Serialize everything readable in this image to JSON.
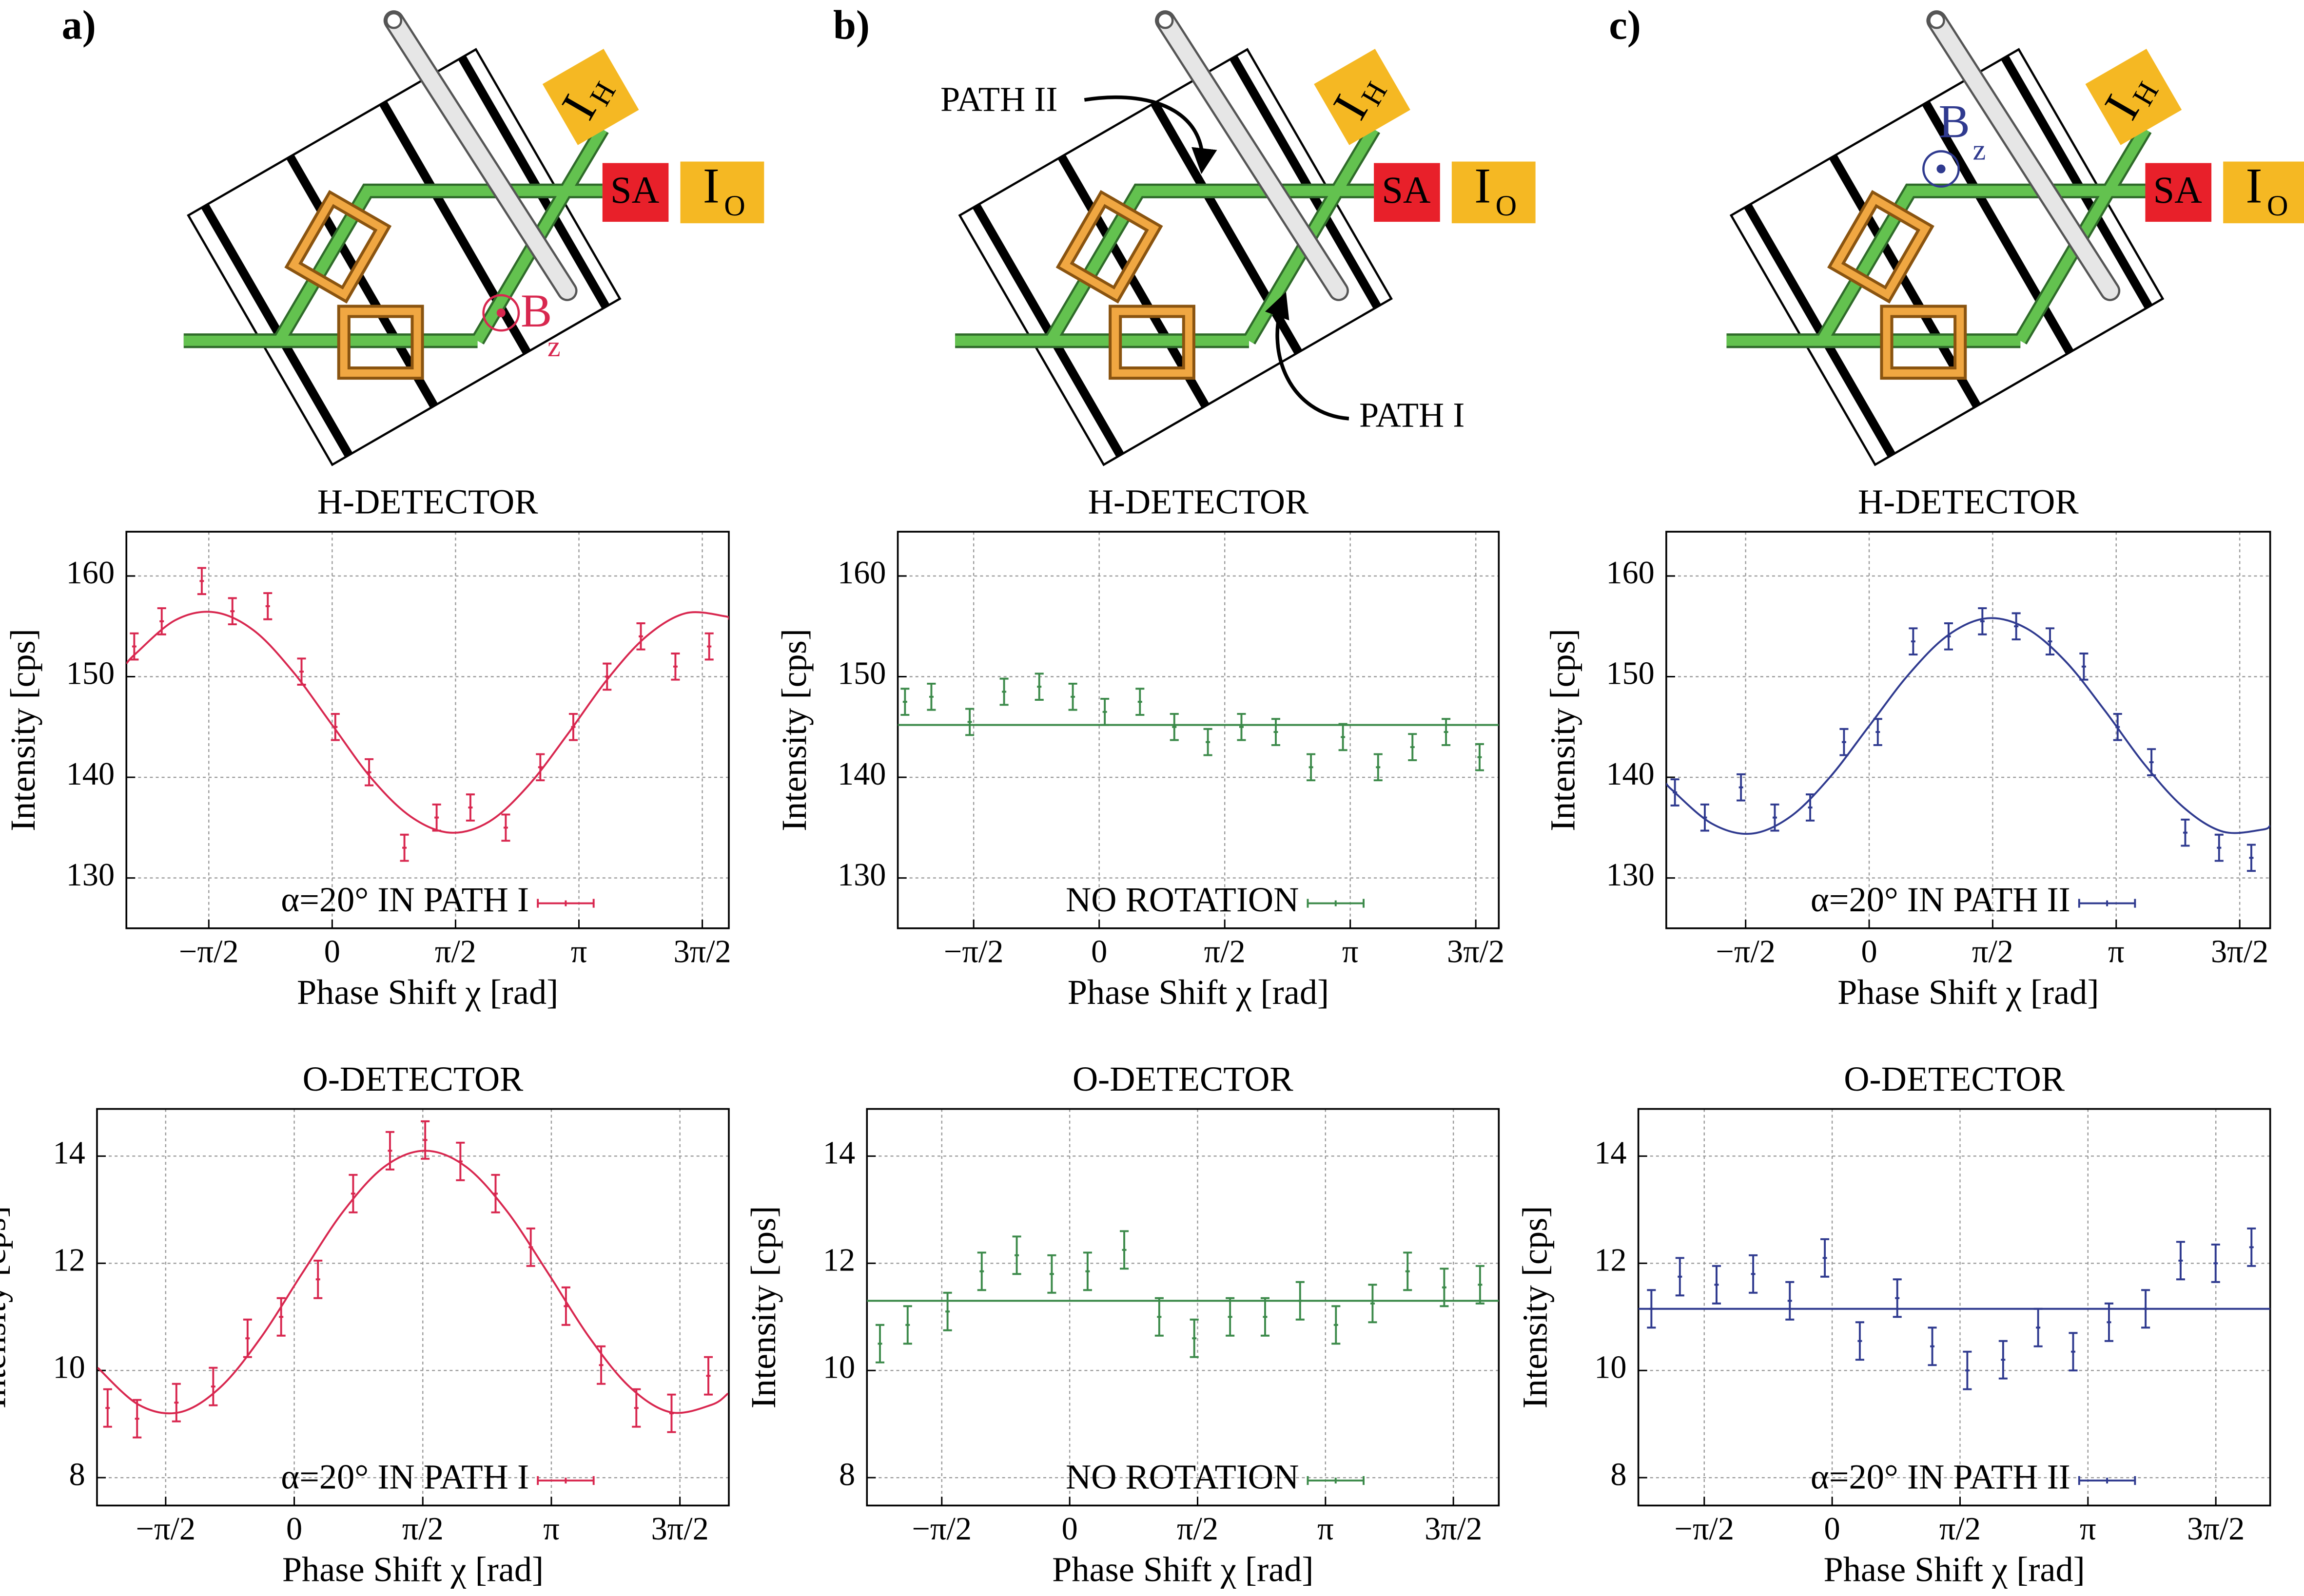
{
  "diagrams": [
    {
      "panel": "a)",
      "ih": "I",
      "ih_sub": "H",
      "sa": "SA",
      "io": "I",
      "io_sub": "O",
      "field": "B",
      "field_sub": "z"
    },
    {
      "panel": "b)",
      "ih": "I",
      "ih_sub": "H",
      "sa": "SA",
      "io": "I",
      "io_sub": "O",
      "path_ii": "PATH II",
      "path_i": "PATH I"
    },
    {
      "panel": "c)",
      "ih": "I",
      "ih_sub": "H",
      "sa": "SA",
      "io": "I",
      "io_sub": "O",
      "field": "B",
      "field_sub": "z"
    }
  ],
  "chart_data": [
    {
      "type": "scatter",
      "title": "H-DETECTOR",
      "xlabel": "Phase Shift χ [rad]",
      "ylabel": "Intensity [cps]",
      "xlim": [
        -2.62,
        5.05
      ],
      "ylim": [
        125,
        164.4
      ],
      "xticks": [
        {
          "value": -1.5708,
          "label": "−π/2"
        },
        0,
        {
          "value": 1.5708,
          "label": "π/2"
        },
        {
          "value": 3.1416,
          "label": "π"
        },
        {
          "value": 4.7124,
          "label": "3π/2"
        }
      ],
      "yticks": [
        130,
        140,
        150,
        160
      ],
      "grid": true,
      "legend_loc": "lower center",
      "series": [
        {
          "name": "α=20° IN PATH I",
          "color": "#d8274f",
          "x": [
            -2.52,
            -2.17,
            -1.66,
            -1.27,
            -0.82,
            -0.39,
            0.04,
            0.47,
            0.92,
            1.33,
            1.76,
            2.21,
            2.65,
            3.07,
            3.5,
            3.93,
            4.37,
            4.8
          ],
          "values": [
            153,
            155.5,
            159.5,
            156.5,
            157,
            150.5,
            145,
            140.5,
            133,
            136,
            137,
            135,
            141,
            145,
            150,
            154,
            151,
            153
          ],
          "errors": [
            1.3,
            1.3,
            1.3,
            1.3,
            1.3,
            1.3,
            1.3,
            1.3,
            1.3,
            1.3,
            1.3,
            1.3,
            1.3,
            1.3,
            1.3,
            1.3,
            1.3,
            1.3
          ]
        }
      ],
      "fit": {
        "x": [
          -2.62,
          -2.5,
          -2,
          -1.5,
          -1,
          -0.5,
          0,
          0.5,
          1,
          1.5,
          2,
          2.5,
          3,
          3.5,
          4,
          4.5,
          5,
          5.05
        ],
        "values": [
          151.3,
          152.3,
          155.6,
          156.4,
          154.6,
          150.5,
          145.2,
          139.9,
          136.1,
          134.5,
          135.6,
          139.2,
          144.3,
          149.7,
          154.0,
          156.3,
          156.0,
          155.7
        ]
      }
    },
    {
      "type": "scatter",
      "title": "H-DETECTOR",
      "xlabel": "Phase Shift χ [rad]",
      "ylabel": "Intensity [cps]",
      "xlim": [
        -2.52,
        5.0
      ],
      "ylim": [
        125,
        164.4
      ],
      "xticks": [
        {
          "value": -1.5708,
          "label": "−π/2"
        },
        0,
        {
          "value": 1.5708,
          "label": "π/2"
        },
        {
          "value": 3.1416,
          "label": "π"
        },
        {
          "value": 4.7124,
          "label": "3π/2"
        }
      ],
      "yticks": [
        130,
        140,
        150,
        160
      ],
      "grid": true,
      "legend_loc": "lower center",
      "series": [
        {
          "name": "NO ROTATION",
          "color": "#3c8a4a",
          "x": [
            -2.43,
            -2.1,
            -1.62,
            -1.19,
            -0.75,
            -0.33,
            0.07,
            0.51,
            0.94,
            1.36,
            1.78,
            2.21,
            2.65,
            3.05,
            3.49,
            3.92,
            4.34,
            4.76
          ],
          "values": [
            147.5,
            148,
            145.5,
            148.5,
            149,
            148,
            146.5,
            147.5,
            145,
            143.5,
            145,
            144.5,
            141,
            144,
            141,
            143,
            144.5,
            142
          ],
          "errors": [
            1.3,
            1.3,
            1.3,
            1.3,
            1.3,
            1.3,
            1.3,
            1.3,
            1.3,
            1.3,
            1.3,
            1.3,
            1.3,
            1.3,
            1.3,
            1.3,
            1.3,
            1.3
          ]
        }
      ],
      "fit": {
        "x": [
          -2.52,
          5.0
        ],
        "values": [
          145.2,
          145.2
        ]
      }
    },
    {
      "type": "scatter",
      "title": "H-DETECTOR",
      "xlabel": "Phase Shift χ [rad]",
      "ylabel": "Intensity [cps]",
      "xlim": [
        -2.58,
        5.1
      ],
      "ylim": [
        125,
        164.4
      ],
      "xticks": [
        {
          "value": -1.5708,
          "label": "−π/2"
        },
        0,
        {
          "value": 1.5708,
          "label": "π/2"
        },
        {
          "value": 3.1416,
          "label": "π"
        },
        {
          "value": 4.7124,
          "label": "3π/2"
        }
      ],
      "yticks": [
        130,
        140,
        150,
        160
      ],
      "grid": true,
      "legend_loc": "lower center",
      "series": [
        {
          "name": "α=20° IN PATH II",
          "color": "#2f3a8f",
          "x": [
            -2.47,
            -2.09,
            -1.63,
            -1.2,
            -0.75,
            -0.32,
            0.11,
            0.56,
            1.01,
            1.44,
            1.87,
            2.3,
            2.73,
            3.16,
            3.59,
            4.02,
            4.45,
            4.86
          ],
          "values": [
            138.5,
            136,
            139,
            136,
            137,
            143.5,
            144.5,
            153.5,
            154,
            155.5,
            155,
            153.5,
            151,
            145,
            141.5,
            134.5,
            133,
            132
          ],
          "errors": [
            1.3,
            1.3,
            1.3,
            1.3,
            1.3,
            1.3,
            1.3,
            1.3,
            1.3,
            1.3,
            1.3,
            1.3,
            1.3,
            1.3,
            1.3,
            1.3,
            1.3,
            1.3
          ]
        }
      ],
      "fit": {
        "x": [
          -2.58,
          -2.5,
          -2,
          -1.5,
          -1,
          -0.5,
          0,
          0.5,
          1,
          1.5,
          2,
          2.5,
          3,
          3.5,
          4,
          4.5,
          5,
          5.1
        ],
        "values": [
          139.4,
          138.7,
          135.4,
          134.4,
          136.1,
          140.0,
          145.1,
          150.2,
          154.1,
          155.8,
          154.8,
          151.5,
          146.6,
          141.3,
          137.0,
          134.6,
          134.8,
          135.2
        ]
      }
    },
    {
      "type": "scatter",
      "title": "O-DETECTOR",
      "xlabel": "Phase Shift χ [rad]",
      "ylabel": "Intensity [cps]",
      "xlim": [
        -2.41,
        5.31
      ],
      "ylim": [
        7.48,
        14.88
      ],
      "xticks": [
        {
          "value": -1.5708,
          "label": "−π/2"
        },
        0,
        {
          "value": 1.5708,
          "label": "π/2"
        },
        {
          "value": 3.1416,
          "label": "π"
        },
        {
          "value": 4.7124,
          "label": "3π/2"
        }
      ],
      "yticks": [
        8,
        10,
        12,
        14
      ],
      "grid": true,
      "legend_loc": "lower center",
      "series": [
        {
          "name": "α=20° IN PATH I",
          "color": "#d8274f",
          "x": [
            -2.28,
            -1.92,
            -1.44,
            -0.99,
            -0.57,
            -0.16,
            0.29,
            0.72,
            1.17,
            1.6,
            2.03,
            2.46,
            2.89,
            3.32,
            3.75,
            4.18,
            4.61,
            5.06
          ],
          "values": [
            9.3,
            9.1,
            9.4,
            9.7,
            10.6,
            11.0,
            11.7,
            13.3,
            14.1,
            14.3,
            13.9,
            13.3,
            12.3,
            11.2,
            10.1,
            9.3,
            9.2,
            9.9
          ],
          "errors": [
            0.35,
            0.35,
            0.35,
            0.35,
            0.35,
            0.35,
            0.35,
            0.35,
            0.35,
            0.35,
            0.35,
            0.35,
            0.35,
            0.35,
            0.35,
            0.35,
            0.35,
            0.35
          ]
        }
      ],
      "fit": {
        "x": [
          -2.4,
          -1.9,
          -1.4,
          -0.9,
          -0.4,
          0.1,
          0.6,
          1.1,
          1.6,
          2.1,
          2.6,
          3.1,
          3.6,
          4.1,
          4.6,
          5.1,
          5.3
        ],
        "values": [
          10.05,
          9.36,
          9.22,
          9.69,
          10.63,
          11.82,
          12.97,
          13.8,
          14.1,
          13.8,
          12.97,
          11.82,
          10.63,
          9.69,
          9.22,
          9.36,
          9.57
        ]
      }
    },
    {
      "type": "scatter",
      "title": "O-DETECTOR",
      "xlabel": "Phase Shift χ [rad]",
      "ylabel": "Intensity [cps]",
      "xlim": [
        -2.49,
        5.27
      ],
      "ylim": [
        7.48,
        14.88
      ],
      "xticks": [
        {
          "value": -1.5708,
          "label": "−π/2"
        },
        0,
        {
          "value": 1.5708,
          "label": "π/2"
        },
        {
          "value": 3.1416,
          "label": "π"
        },
        {
          "value": 4.7124,
          "label": "3π/2"
        }
      ],
      "yticks": [
        8,
        10,
        12,
        14
      ],
      "grid": true,
      "legend_loc": "lower center",
      "series": [
        {
          "name": "NO ROTATION",
          "color": "#3c8a4a",
          "x": [
            -2.33,
            -1.99,
            -1.5,
            -1.08,
            -0.65,
            -0.22,
            0.22,
            0.67,
            1.1,
            1.53,
            1.97,
            2.4,
            2.83,
            3.27,
            3.72,
            4.15,
            4.6,
            5.04
          ],
          "values": [
            10.5,
            10.85,
            11.1,
            11.85,
            12.15,
            11.8,
            11.85,
            12.25,
            11.0,
            10.6,
            11.0,
            11.0,
            11.3,
            10.85,
            11.25,
            11.85,
            11.55,
            11.6
          ],
          "errors": [
            0.35,
            0.35,
            0.35,
            0.35,
            0.35,
            0.35,
            0.35,
            0.35,
            0.35,
            0.35,
            0.35,
            0.35,
            0.35,
            0.35,
            0.35,
            0.35,
            0.35,
            0.35
          ]
        }
      ],
      "fit": {
        "x": [
          -2.49,
          5.27
        ],
        "values": [
          11.3,
          11.3
        ]
      }
    },
    {
      "type": "scatter",
      "title": "O-DETECTOR",
      "xlabel": "Phase Shift χ [rad]",
      "ylabel": "Intensity [cps]",
      "xlim": [
        -2.38,
        5.38
      ],
      "ylim": [
        7.48,
        14.88
      ],
      "xticks": [
        {
          "value": -1.5708,
          "label": "−π/2"
        },
        0,
        {
          "value": 1.5708,
          "label": "π/2"
        },
        {
          "value": 3.1416,
          "label": "π"
        },
        {
          "value": 4.7124,
          "label": "3π/2"
        }
      ],
      "yticks": [
        8,
        10,
        12,
        14
      ],
      "grid": true,
      "legend_loc": "lower center",
      "series": [
        {
          "name": "α=20° IN PATH II",
          "color": "#2f3a8f",
          "x": [
            -2.22,
            -1.87,
            -1.42,
            -0.97,
            -0.52,
            -0.09,
            0.34,
            0.8,
            1.23,
            1.66,
            2.1,
            2.53,
            2.96,
            3.4,
            3.85,
            4.28,
            4.71,
            5.15
          ],
          "values": [
            11.15,
            11.75,
            11.6,
            11.8,
            11.3,
            12.1,
            10.55,
            11.35,
            10.45,
            10.0,
            10.2,
            10.8,
            10.35,
            10.9,
            11.15,
            12.05,
            12.0,
            12.3
          ],
          "errors": [
            0.35,
            0.35,
            0.35,
            0.35,
            0.35,
            0.35,
            0.35,
            0.35,
            0.35,
            0.35,
            0.35,
            0.35,
            0.35,
            0.35,
            0.35,
            0.35,
            0.35,
            0.35
          ]
        }
      ],
      "fit": {
        "x": [
          -2.38,
          5.38
        ],
        "values": [
          11.15,
          11.15
        ]
      }
    }
  ]
}
